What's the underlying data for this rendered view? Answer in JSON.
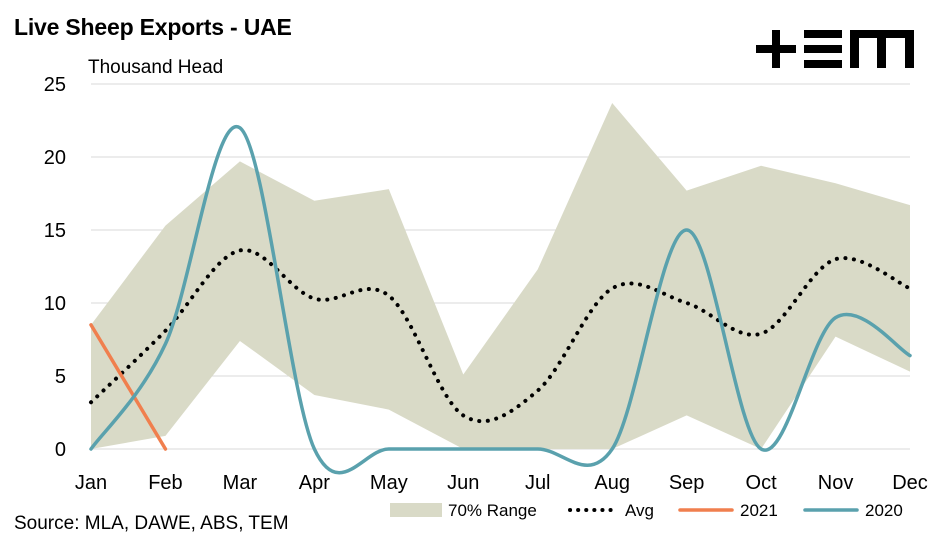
{
  "header": {
    "title": "Live Sheep Exports - UAE",
    "unit_label": "Thousand Head",
    "source": "Source: MLA, DAWE, ABS, TEM",
    "logo_text": "TEM"
  },
  "chart_data": {
    "type": "line",
    "title": "Live Sheep Exports - UAE",
    "ylabel": "Thousand Head",
    "xlabel": "",
    "categories": [
      "Jan",
      "Feb",
      "Mar",
      "Apr",
      "May",
      "Jun",
      "Jul",
      "Aug",
      "Sep",
      "Oct",
      "Nov",
      "Dec"
    ],
    "ylim": [
      0,
      25
    ],
    "yticks": [
      0,
      5,
      10,
      15,
      20,
      25
    ],
    "grid": true,
    "legend_position": "bottom",
    "range": {
      "name": "70% Range",
      "color": "#d9dac7",
      "upper": [
        8.5,
        15.3,
        19.7,
        17.0,
        17.8,
        5.1,
        12.3,
        23.7,
        17.7,
        19.4,
        18.2,
        16.7
      ],
      "lower": [
        0.0,
        0.9,
        7.4,
        3.7,
        2.7,
        0.0,
        0.0,
        0.0,
        2.3,
        0.0,
        7.7,
        5.3
      ]
    },
    "series": [
      {
        "name": "Avg",
        "color": "#000000",
        "style": "dotted",
        "smooth": true,
        "values": [
          3.2,
          8.1,
          13.6,
          10.3,
          10.5,
          2.3,
          4.0,
          11.0,
          10.0,
          7.9,
          13.0,
          11.0
        ]
      },
      {
        "name": "2021",
        "color": "#f07f4e",
        "style": "solid",
        "smooth": false,
        "values": [
          8.5,
          0.0,
          null,
          null,
          null,
          null,
          null,
          null,
          null,
          null,
          null,
          null
        ]
      },
      {
        "name": "2020",
        "color": "#5aa1ad",
        "style": "solid",
        "smooth": true,
        "values": [
          0.0,
          7.2,
          22.0,
          0.0,
          0.0,
          0.0,
          0.0,
          0.0,
          15.0,
          0.0,
          9.0,
          6.4
        ]
      }
    ]
  }
}
